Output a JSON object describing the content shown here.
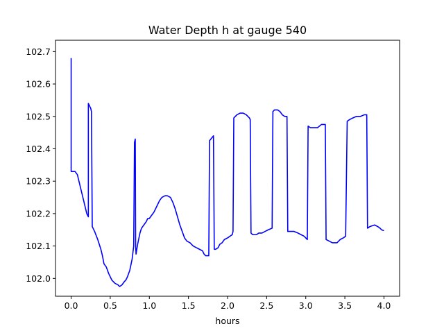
{
  "chart_data": {
    "type": "line",
    "title": "Water Depth h at gauge 540",
    "xlabel": "hours",
    "ylabel": "",
    "xlim": [
      -0.2,
      4.2
    ],
    "ylim": [
      101.945,
      102.735
    ],
    "xticks": [
      0.0,
      0.5,
      1.0,
      1.5,
      2.0,
      2.5,
      3.0,
      3.5,
      4.0
    ],
    "xtick_labels": [
      "0.0",
      "0.5",
      "1.0",
      "1.5",
      "2.0",
      "2.5",
      "3.0",
      "3.5",
      "4.0"
    ],
    "yticks": [
      102.0,
      102.1,
      102.2,
      102.3,
      102.4,
      102.5,
      102.6,
      102.7
    ],
    "ytick_labels": [
      "102.0",
      "102.1",
      "102.2",
      "102.3",
      "102.4",
      "102.5",
      "102.6",
      "102.7"
    ],
    "grid": false,
    "line_color": "#0000ff",
    "series": [
      {
        "name": "",
        "x": [
          0.0,
          0.0,
          0.02,
          0.05,
          0.08,
          0.12,
          0.16,
          0.2,
          0.22,
          0.22,
          0.25,
          0.26,
          0.27,
          0.3,
          0.34,
          0.38,
          0.4,
          0.42,
          0.45,
          0.48,
          0.52,
          0.56,
          0.6,
          0.62,
          0.65,
          0.68,
          0.7,
          0.72,
          0.75,
          0.78,
          0.8,
          0.81,
          0.82,
          0.825,
          0.83,
          0.85,
          0.88,
          0.9,
          0.93,
          0.96,
          0.98,
          1.0,
          1.03,
          1.06,
          1.1,
          1.13,
          1.16,
          1.2,
          1.23,
          1.27,
          1.3,
          1.33,
          1.36,
          1.39,
          1.42,
          1.45,
          1.48,
          1.52,
          1.56,
          1.6,
          1.64,
          1.68,
          1.7,
          1.72,
          1.75,
          1.76,
          1.77,
          1.82,
          1.83,
          1.85,
          1.88,
          1.9,
          1.93,
          1.96,
          2.0,
          2.03,
          2.06,
          2.07,
          2.08,
          2.12,
          2.16,
          2.2,
          2.24,
          2.28,
          2.29,
          2.3,
          2.32,
          2.34,
          2.37,
          2.4,
          2.44,
          2.48,
          2.52,
          2.57,
          2.58,
          2.6,
          2.62,
          2.64,
          2.67,
          2.7,
          2.73,
          2.76,
          2.77,
          2.8,
          2.85,
          2.9,
          2.94,
          2.98,
          3.0,
          3.02,
          3.03,
          3.06,
          3.1,
          3.15,
          3.2,
          3.22,
          3.25,
          3.26,
          3.3,
          3.34,
          3.37,
          3.4,
          3.44,
          3.48,
          3.51,
          3.53,
          3.56,
          3.6,
          3.65,
          3.7,
          3.75,
          3.78,
          3.79,
          3.82,
          3.88,
          3.92,
          3.95,
          3.97,
          3.99,
          4.0
        ],
        "y": [
          102.68,
          102.33,
          102.33,
          102.33,
          102.32,
          102.28,
          102.24,
          102.2,
          102.19,
          102.54,
          102.525,
          102.515,
          102.16,
          102.145,
          102.12,
          102.09,
          102.07,
          102.045,
          102.035,
          102.015,
          101.995,
          101.985,
          101.98,
          101.975,
          101.98,
          101.99,
          101.995,
          102.005,
          102.025,
          102.06,
          102.1,
          102.42,
          102.43,
          102.1,
          102.075,
          102.105,
          102.14,
          102.155,
          102.165,
          102.175,
          102.185,
          102.185,
          102.195,
          102.205,
          102.225,
          102.24,
          102.25,
          102.255,
          102.255,
          102.25,
          102.235,
          102.215,
          102.19,
          102.165,
          102.145,
          102.125,
          102.115,
          102.11,
          102.1,
          102.095,
          102.09,
          102.085,
          102.075,
          102.07,
          102.07,
          102.07,
          102.425,
          102.44,
          102.09,
          102.09,
          102.095,
          102.105,
          102.11,
          102.12,
          102.125,
          102.13,
          102.135,
          102.145,
          102.495,
          102.505,
          102.51,
          102.51,
          102.505,
          102.495,
          102.49,
          102.14,
          102.135,
          102.135,
          102.135,
          102.14,
          102.14,
          102.145,
          102.15,
          102.155,
          102.515,
          102.52,
          102.52,
          102.52,
          102.515,
          102.505,
          102.5,
          102.5,
          102.145,
          102.145,
          102.145,
          102.14,
          102.135,
          102.13,
          102.125,
          102.12,
          102.47,
          102.465,
          102.465,
          102.465,
          102.475,
          102.475,
          102.475,
          102.12,
          102.115,
          102.11,
          102.11,
          102.11,
          102.12,
          102.125,
          102.13,
          102.485,
          102.49,
          102.495,
          102.5,
          102.5,
          102.505,
          102.505,
          102.155,
          102.16,
          102.165,
          102.16,
          102.155,
          102.15,
          102.148,
          102.148
        ]
      }
    ]
  }
}
